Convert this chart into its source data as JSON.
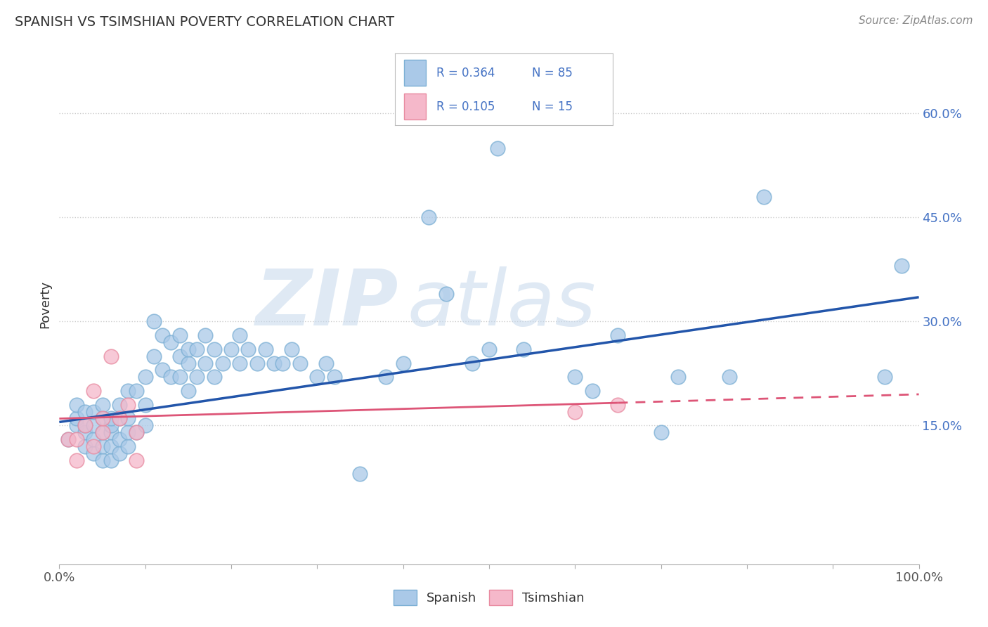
{
  "title": "SPANISH VS TSIMSHIAN POVERTY CORRELATION CHART",
  "source": "Source: ZipAtlas.com",
  "ylabel": "Poverty",
  "xlim": [
    0,
    1
  ],
  "ylim": [
    -0.05,
    0.7
  ],
  "ytick_gridlines": [
    0.15,
    0.3,
    0.45,
    0.6
  ],
  "ytick_labels": [
    "15.0%",
    "30.0%",
    "45.0%",
    "60.0%"
  ],
  "watermark_zip": "ZIP",
  "watermark_atlas": "atlas",
  "spanish_color": "#aac9e8",
  "tsimshian_color": "#f5b8ca",
  "spanish_edge": "#7bafd4",
  "tsimshian_edge": "#e88aa0",
  "trend_blue": "#2255aa",
  "trend_pink": "#dd5577",
  "spanish_R": 0.364,
  "spanish_N": 85,
  "tsimshian_R": 0.105,
  "tsimshian_N": 15,
  "legend_label_color": "#4472c4",
  "spanish_x": [
    0.01,
    0.02,
    0.02,
    0.02,
    0.03,
    0.03,
    0.03,
    0.03,
    0.04,
    0.04,
    0.04,
    0.04,
    0.05,
    0.05,
    0.05,
    0.05,
    0.05,
    0.06,
    0.06,
    0.06,
    0.06,
    0.06,
    0.07,
    0.07,
    0.07,
    0.07,
    0.08,
    0.08,
    0.08,
    0.08,
    0.09,
    0.09,
    0.1,
    0.1,
    0.1,
    0.11,
    0.11,
    0.12,
    0.12,
    0.13,
    0.13,
    0.14,
    0.14,
    0.14,
    0.15,
    0.15,
    0.15,
    0.16,
    0.16,
    0.17,
    0.17,
    0.18,
    0.18,
    0.19,
    0.2,
    0.21,
    0.21,
    0.22,
    0.23,
    0.24,
    0.25,
    0.26,
    0.27,
    0.28,
    0.3,
    0.31,
    0.32,
    0.35,
    0.38,
    0.4,
    0.43,
    0.45,
    0.48,
    0.5,
    0.51,
    0.54,
    0.6,
    0.62,
    0.65,
    0.7,
    0.72,
    0.78,
    0.82,
    0.96,
    0.98
  ],
  "spanish_y": [
    0.13,
    0.15,
    0.16,
    0.18,
    0.12,
    0.14,
    0.15,
    0.17,
    0.11,
    0.13,
    0.15,
    0.17,
    0.1,
    0.12,
    0.14,
    0.16,
    0.18,
    0.1,
    0.12,
    0.14,
    0.15,
    0.16,
    0.11,
    0.13,
    0.16,
    0.18,
    0.12,
    0.14,
    0.16,
    0.2,
    0.14,
    0.2,
    0.15,
    0.18,
    0.22,
    0.25,
    0.3,
    0.23,
    0.28,
    0.22,
    0.27,
    0.22,
    0.25,
    0.28,
    0.2,
    0.24,
    0.26,
    0.22,
    0.26,
    0.24,
    0.28,
    0.22,
    0.26,
    0.24,
    0.26,
    0.28,
    0.24,
    0.26,
    0.24,
    0.26,
    0.24,
    0.24,
    0.26,
    0.24,
    0.22,
    0.24,
    0.22,
    0.08,
    0.22,
    0.24,
    0.45,
    0.34,
    0.24,
    0.26,
    0.55,
    0.26,
    0.22,
    0.2,
    0.28,
    0.14,
    0.22,
    0.22,
    0.48,
    0.22,
    0.38
  ],
  "tsimshian_x": [
    0.01,
    0.02,
    0.02,
    0.03,
    0.04,
    0.04,
    0.05,
    0.05,
    0.06,
    0.07,
    0.08,
    0.09,
    0.09,
    0.6,
    0.65
  ],
  "tsimshian_y": [
    0.13,
    0.1,
    0.13,
    0.15,
    0.12,
    0.2,
    0.14,
    0.16,
    0.25,
    0.16,
    0.18,
    0.14,
    0.1,
    0.17,
    0.18
  ],
  "trend_blue_x0": 0.0,
  "trend_blue_y0": 0.155,
  "trend_blue_x1": 1.0,
  "trend_blue_y1": 0.335,
  "trend_pink_x0": 0.0,
  "trend_pink_y0": 0.16,
  "trend_pink_x1": 1.0,
  "trend_pink_y1": 0.195
}
